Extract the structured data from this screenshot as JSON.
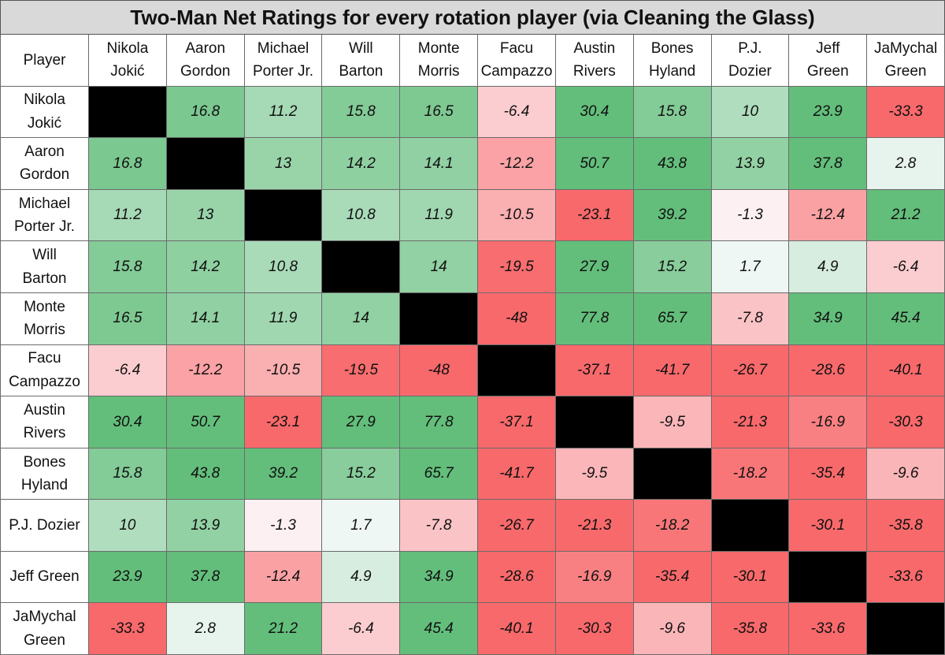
{
  "chart_data": {
    "type": "heatmap",
    "title": "Two-Man Net Ratings for every rotation player (via Cleaning the Glass)",
    "corner_label": "Player",
    "players": [
      "Nikola Jokić",
      "Aaron Gordon",
      "Michael Porter Jr.",
      "Will Barton",
      "Monte Morris",
      "Facu Campazzo",
      "Austin Rivers",
      "Bones Hyland",
      "P.J. Dozier",
      "Jeff Green",
      "JaMychal Green"
    ],
    "column_labels": [
      "Nikola\nJokić",
      "Aaron\nGordon",
      "Michael\nPorter Jr.",
      "Will\nBarton",
      "Monte\nMorris",
      "Facu\nCampazzo",
      "Austin\nRivers",
      "Bones\nHyland",
      "P.J.\nDozier",
      "Jeff\nGreen",
      "JaMychal\nGreen"
    ],
    "row_labels": [
      "Nikola\nJokić",
      "Aaron\nGordon",
      "Michael\nPorter Jr.",
      "Will\nBarton",
      "Monte\nMorris",
      "Facu\nCampazzo",
      "Austin\nRivers",
      "Bones\nHyland",
      "P.J. Dozier",
      "Jeff Green",
      "JaMychal\nGreen"
    ],
    "values": [
      [
        null,
        16.8,
        11.2,
        15.8,
        16.5,
        -6.4,
        30.4,
        15.8,
        10,
        23.9,
        -33.3
      ],
      [
        16.8,
        null,
        13,
        14.2,
        14.1,
        -12.2,
        50.7,
        43.8,
        13.9,
        37.8,
        2.8
      ],
      [
        11.2,
        13,
        null,
        10.8,
        11.9,
        -10.5,
        -23.1,
        39.2,
        -1.3,
        -12.4,
        21.2
      ],
      [
        15.8,
        14.2,
        10.8,
        null,
        14,
        -19.5,
        27.9,
        15.2,
        1.7,
        4.9,
        -6.4
      ],
      [
        16.5,
        14.1,
        11.9,
        14,
        null,
        -48,
        77.8,
        65.7,
        -7.8,
        34.9,
        45.4
      ],
      [
        -6.4,
        -12.2,
        -10.5,
        -19.5,
        -48,
        null,
        -37.1,
        -41.7,
        -26.7,
        -28.6,
        -40.1
      ],
      [
        30.4,
        50.7,
        -23.1,
        27.9,
        77.8,
        -37.1,
        null,
        -9.5,
        -21.3,
        -16.9,
        -30.3
      ],
      [
        15.8,
        43.8,
        39.2,
        15.2,
        65.7,
        -41.7,
        -9.5,
        null,
        -18.2,
        -35.4,
        -9.6
      ],
      [
        10,
        13.9,
        -1.3,
        1.7,
        -7.8,
        -26.7,
        -21.3,
        -18.2,
        null,
        -30.1,
        -35.8
      ],
      [
        23.9,
        37.8,
        -12.4,
        4.9,
        34.9,
        -28.6,
        -16.9,
        -35.4,
        -30.1,
        null,
        -33.6
      ],
      [
        -33.3,
        2.8,
        21.2,
        -6.4,
        45.4,
        -40.1,
        -30.3,
        -9.6,
        -35.8,
        -33.6,
        null
      ]
    ],
    "colors": {
      "positive": "#63be7b",
      "negative": "#f8696b",
      "neutral": "#fcfcff",
      "diagonal": "#000000"
    },
    "color_saturation_point": 20
  }
}
